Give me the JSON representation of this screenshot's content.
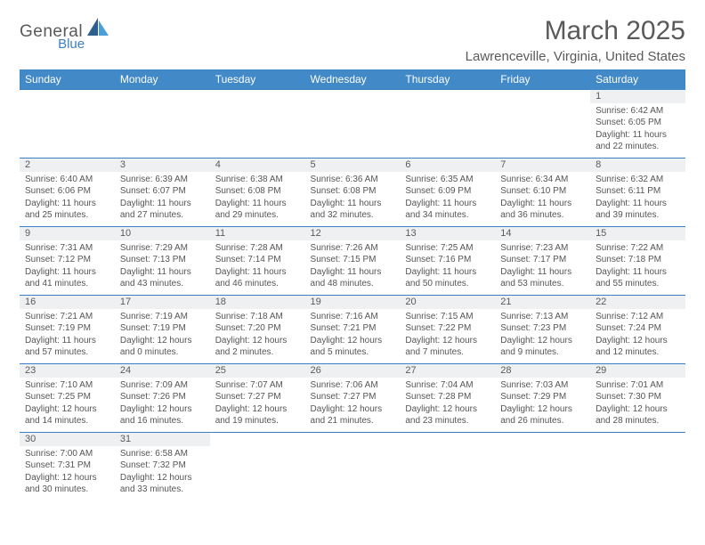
{
  "logo": {
    "general": "Genera",
    "l": "l",
    "blue": "Blue"
  },
  "title": "March 2025",
  "location": "Lawrenceville, Virginia, United States",
  "colors": {
    "header_bg": "#4189c7",
    "header_text": "#ffffff",
    "daynum_bg": "#eef0f2",
    "row_border": "#3a7fc4",
    "text": "#5a5a5a",
    "logo_blue": "#3a7fc4"
  },
  "typography": {
    "title_fontsize": 30,
    "location_fontsize": 15,
    "dayheader_fontsize": 12,
    "daynum_fontsize": 11,
    "cell_fontsize": 10
  },
  "day_headers": [
    "Sunday",
    "Monday",
    "Tuesday",
    "Wednesday",
    "Thursday",
    "Friday",
    "Saturday"
  ],
  "weeks": [
    [
      null,
      null,
      null,
      null,
      null,
      null,
      {
        "n": "1",
        "sr": "6:42 AM",
        "ss": "6:05 PM",
        "dl": "11 hours and 22 minutes."
      }
    ],
    [
      {
        "n": "2",
        "sr": "6:40 AM",
        "ss": "6:06 PM",
        "dl": "11 hours and 25 minutes."
      },
      {
        "n": "3",
        "sr": "6:39 AM",
        "ss": "6:07 PM",
        "dl": "11 hours and 27 minutes."
      },
      {
        "n": "4",
        "sr": "6:38 AM",
        "ss": "6:08 PM",
        "dl": "11 hours and 29 minutes."
      },
      {
        "n": "5",
        "sr": "6:36 AM",
        "ss": "6:08 PM",
        "dl": "11 hours and 32 minutes."
      },
      {
        "n": "6",
        "sr": "6:35 AM",
        "ss": "6:09 PM",
        "dl": "11 hours and 34 minutes."
      },
      {
        "n": "7",
        "sr": "6:34 AM",
        "ss": "6:10 PM",
        "dl": "11 hours and 36 minutes."
      },
      {
        "n": "8",
        "sr": "6:32 AM",
        "ss": "6:11 PM",
        "dl": "11 hours and 39 minutes."
      }
    ],
    [
      {
        "n": "9",
        "sr": "7:31 AM",
        "ss": "7:12 PM",
        "dl": "11 hours and 41 minutes."
      },
      {
        "n": "10",
        "sr": "7:29 AM",
        "ss": "7:13 PM",
        "dl": "11 hours and 43 minutes."
      },
      {
        "n": "11",
        "sr": "7:28 AM",
        "ss": "7:14 PM",
        "dl": "11 hours and 46 minutes."
      },
      {
        "n": "12",
        "sr": "7:26 AM",
        "ss": "7:15 PM",
        "dl": "11 hours and 48 minutes."
      },
      {
        "n": "13",
        "sr": "7:25 AM",
        "ss": "7:16 PM",
        "dl": "11 hours and 50 minutes."
      },
      {
        "n": "14",
        "sr": "7:23 AM",
        "ss": "7:17 PM",
        "dl": "11 hours and 53 minutes."
      },
      {
        "n": "15",
        "sr": "7:22 AM",
        "ss": "7:18 PM",
        "dl": "11 hours and 55 minutes."
      }
    ],
    [
      {
        "n": "16",
        "sr": "7:21 AM",
        "ss": "7:19 PM",
        "dl": "11 hours and 57 minutes."
      },
      {
        "n": "17",
        "sr": "7:19 AM",
        "ss": "7:19 PM",
        "dl": "12 hours and 0 minutes."
      },
      {
        "n": "18",
        "sr": "7:18 AM",
        "ss": "7:20 PM",
        "dl": "12 hours and 2 minutes."
      },
      {
        "n": "19",
        "sr": "7:16 AM",
        "ss": "7:21 PM",
        "dl": "12 hours and 5 minutes."
      },
      {
        "n": "20",
        "sr": "7:15 AM",
        "ss": "7:22 PM",
        "dl": "12 hours and 7 minutes."
      },
      {
        "n": "21",
        "sr": "7:13 AM",
        "ss": "7:23 PM",
        "dl": "12 hours and 9 minutes."
      },
      {
        "n": "22",
        "sr": "7:12 AM",
        "ss": "7:24 PM",
        "dl": "12 hours and 12 minutes."
      }
    ],
    [
      {
        "n": "23",
        "sr": "7:10 AM",
        "ss": "7:25 PM",
        "dl": "12 hours and 14 minutes."
      },
      {
        "n": "24",
        "sr": "7:09 AM",
        "ss": "7:26 PM",
        "dl": "12 hours and 16 minutes."
      },
      {
        "n": "25",
        "sr": "7:07 AM",
        "ss": "7:27 PM",
        "dl": "12 hours and 19 minutes."
      },
      {
        "n": "26",
        "sr": "7:06 AM",
        "ss": "7:27 PM",
        "dl": "12 hours and 21 minutes."
      },
      {
        "n": "27",
        "sr": "7:04 AM",
        "ss": "7:28 PM",
        "dl": "12 hours and 23 minutes."
      },
      {
        "n": "28",
        "sr": "7:03 AM",
        "ss": "7:29 PM",
        "dl": "12 hours and 26 minutes."
      },
      {
        "n": "29",
        "sr": "7:01 AM",
        "ss": "7:30 PM",
        "dl": "12 hours and 28 minutes."
      }
    ],
    [
      {
        "n": "30",
        "sr": "7:00 AM",
        "ss": "7:31 PM",
        "dl": "12 hours and 30 minutes."
      },
      {
        "n": "31",
        "sr": "6:58 AM",
        "ss": "7:32 PM",
        "dl": "12 hours and 33 minutes."
      },
      null,
      null,
      null,
      null,
      null
    ]
  ],
  "labels": {
    "sunrise": "Sunrise:",
    "sunset": "Sunset:",
    "daylight": "Daylight:"
  }
}
